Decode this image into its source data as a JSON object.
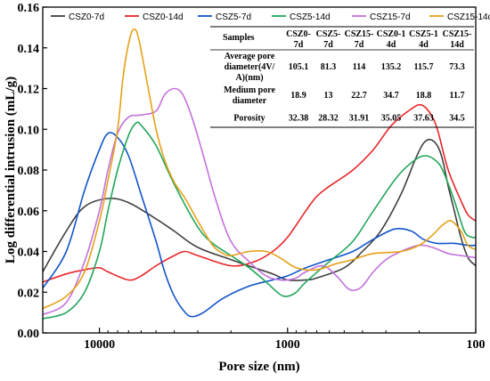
{
  "chart_data": {
    "type": "line",
    "xlabel": "Pore size (nm)",
    "ylabel": "Log differential intrusion (mL/g)",
    "x_scale": "log",
    "x_reversed": true,
    "xlim": [
      20000,
      100
    ],
    "ylim": [
      0,
      0.16
    ],
    "x_ticks": [
      10000,
      1000,
      100
    ],
    "x_tick_labels": [
      "10000",
      "1000",
      "100"
    ],
    "y_ticks": [
      0,
      0.02,
      0.04,
      0.06,
      0.08,
      0.1,
      0.12,
      0.14,
      0.16
    ],
    "y_tick_labels": [
      "0.00",
      "0.02",
      "0.04",
      "0.06",
      "0.08",
      "0.10",
      "0.12",
      "0.14",
      "0.16"
    ],
    "grid": false,
    "legend_position": "top",
    "series": [
      {
        "name": "CSZ0-7d",
        "color": "#404040",
        "points": [
          [
            20000,
            0.03
          ],
          [
            15000,
            0.05
          ],
          [
            12000,
            0.062
          ],
          [
            9000,
            0.066
          ],
          [
            7000,
            0.064
          ],
          [
            5000,
            0.056
          ],
          [
            4000,
            0.05
          ],
          [
            3000,
            0.042
          ],
          [
            2000,
            0.036
          ],
          [
            1500,
            0.032
          ],
          [
            1200,
            0.029
          ],
          [
            1000,
            0.026
          ],
          [
            800,
            0.026
          ],
          [
            700,
            0.027
          ],
          [
            500,
            0.032
          ],
          [
            400,
            0.04
          ],
          [
            320,
            0.05
          ],
          [
            250,
            0.068
          ],
          [
            210,
            0.085
          ],
          [
            190,
            0.093
          ],
          [
            175,
            0.095
          ],
          [
            160,
            0.092
          ],
          [
            150,
            0.085
          ],
          [
            140,
            0.072
          ],
          [
            130,
            0.06
          ],
          [
            120,
            0.047
          ],
          [
            110,
            0.037
          ],
          [
            100,
            0.033
          ]
        ]
      },
      {
        "name": "CSZ0-14d",
        "color": "#e8262a",
        "points": [
          [
            20000,
            0.025
          ],
          [
            15000,
            0.029
          ],
          [
            12000,
            0.031
          ],
          [
            10000,
            0.032
          ],
          [
            9000,
            0.03
          ],
          [
            7000,
            0.026
          ],
          [
            6000,
            0.028
          ],
          [
            5000,
            0.033
          ],
          [
            4000,
            0.038
          ],
          [
            3500,
            0.04
          ],
          [
            3000,
            0.038
          ],
          [
            2000,
            0.033
          ],
          [
            1500,
            0.035
          ],
          [
            1200,
            0.04
          ],
          [
            1000,
            0.047
          ],
          [
            800,
            0.06
          ],
          [
            700,
            0.067
          ],
          [
            600,
            0.072
          ],
          [
            450,
            0.08
          ],
          [
            350,
            0.09
          ],
          [
            280,
            0.102
          ],
          [
            220,
            0.11
          ],
          [
            195,
            0.112
          ],
          [
            175,
            0.108
          ],
          [
            160,
            0.1
          ],
          [
            140,
            0.08
          ],
          [
            120,
            0.065
          ],
          [
            110,
            0.058
          ],
          [
            100,
            0.055
          ]
        ]
      },
      {
        "name": "CSZ5-7d",
        "color": "#1155cc",
        "points": [
          [
            20000,
            0.022
          ],
          [
            15000,
            0.04
          ],
          [
            12000,
            0.07
          ],
          [
            10000,
            0.09
          ],
          [
            9000,
            0.098
          ],
          [
            8000,
            0.096
          ],
          [
            7000,
            0.087
          ],
          [
            6000,
            0.068
          ],
          [
            5000,
            0.045
          ],
          [
            4500,
            0.03
          ],
          [
            4000,
            0.018
          ],
          [
            3500,
            0.01
          ],
          [
            3200,
            0.008
          ],
          [
            2800,
            0.01
          ],
          [
            2200,
            0.017
          ],
          [
            1600,
            0.023
          ],
          [
            1200,
            0.026
          ],
          [
            1000,
            0.028
          ],
          [
            800,
            0.032
          ],
          [
            600,
            0.036
          ],
          [
            450,
            0.04
          ],
          [
            350,
            0.046
          ],
          [
            270,
            0.051
          ],
          [
            220,
            0.05
          ],
          [
            190,
            0.046
          ],
          [
            160,
            0.044
          ],
          [
            130,
            0.044
          ],
          [
            110,
            0.043
          ],
          [
            100,
            0.043
          ]
        ]
      },
      {
        "name": "CSZ5-14d",
        "color": "#22a65a",
        "points": [
          [
            20000,
            0.007
          ],
          [
            15000,
            0.01
          ],
          [
            12000,
            0.02
          ],
          [
            10000,
            0.04
          ],
          [
            9000,
            0.06
          ],
          [
            8000,
            0.08
          ],
          [
            7000,
            0.097
          ],
          [
            6400,
            0.103
          ],
          [
            6000,
            0.102
          ],
          [
            5000,
            0.092
          ],
          [
            4000,
            0.073
          ],
          [
            3000,
            0.052
          ],
          [
            2500,
            0.044
          ],
          [
            2000,
            0.038
          ],
          [
            1600,
            0.032
          ],
          [
            1300,
            0.025
          ],
          [
            1100,
            0.019
          ],
          [
            1000,
            0.018
          ],
          [
            900,
            0.02
          ],
          [
            800,
            0.025
          ],
          [
            600,
            0.035
          ],
          [
            450,
            0.045
          ],
          [
            350,
            0.06
          ],
          [
            260,
            0.077
          ],
          [
            210,
            0.085
          ],
          [
            185,
            0.087
          ],
          [
            165,
            0.085
          ],
          [
            150,
            0.08
          ],
          [
            130,
            0.065
          ],
          [
            115,
            0.05
          ],
          [
            105,
            0.047
          ],
          [
            100,
            0.047
          ]
        ]
      },
      {
        "name": "CSZ15-7d",
        "color": "#c372dc",
        "points": [
          [
            20000,
            0.009
          ],
          [
            15000,
            0.015
          ],
          [
            12000,
            0.035
          ],
          [
            10000,
            0.06
          ],
          [
            9000,
            0.08
          ],
          [
            8000,
            0.098
          ],
          [
            7000,
            0.106
          ],
          [
            6000,
            0.107
          ],
          [
            5000,
            0.109
          ],
          [
            4500,
            0.117
          ],
          [
            4000,
            0.12
          ],
          [
            3600,
            0.117
          ],
          [
            3200,
            0.105
          ],
          [
            2800,
            0.087
          ],
          [
            2400,
            0.065
          ],
          [
            2000,
            0.045
          ],
          [
            1600,
            0.035
          ],
          [
            1300,
            0.028
          ],
          [
            1100,
            0.026
          ],
          [
            1000,
            0.026
          ],
          [
            900,
            0.027
          ],
          [
            800,
            0.03
          ],
          [
            650,
            0.033
          ],
          [
            550,
            0.028
          ],
          [
            480,
            0.022
          ],
          [
            440,
            0.021
          ],
          [
            400,
            0.023
          ],
          [
            350,
            0.03
          ],
          [
            300,
            0.036
          ],
          [
            250,
            0.04
          ],
          [
            200,
            0.043
          ],
          [
            170,
            0.042
          ],
          [
            140,
            0.039
          ],
          [
            120,
            0.038
          ],
          [
            100,
            0.037
          ]
        ]
      },
      {
        "name": "CSZ15-14d",
        "color": "#e6a118",
        "points": [
          [
            20000,
            0.012
          ],
          [
            15000,
            0.018
          ],
          [
            12000,
            0.03
          ],
          [
            10000,
            0.055
          ],
          [
            9000,
            0.075
          ],
          [
            8000,
            0.1
          ],
          [
            7500,
            0.125
          ],
          [
            7000,
            0.142
          ],
          [
            6600,
            0.149
          ],
          [
            6200,
            0.145
          ],
          [
            5500,
            0.12
          ],
          [
            5000,
            0.1
          ],
          [
            4500,
            0.085
          ],
          [
            4000,
            0.074
          ],
          [
            3500,
            0.066
          ],
          [
            3000,
            0.055
          ],
          [
            2500,
            0.043
          ],
          [
            2200,
            0.039
          ],
          [
            2000,
            0.038
          ],
          [
            1600,
            0.04
          ],
          [
            1300,
            0.04
          ],
          [
            1100,
            0.037
          ],
          [
            900,
            0.032
          ],
          [
            700,
            0.031
          ],
          [
            550,
            0.034
          ],
          [
            450,
            0.036
          ],
          [
            350,
            0.039
          ],
          [
            250,
            0.04
          ],
          [
            200,
            0.043
          ],
          [
            170,
            0.048
          ],
          [
            150,
            0.053
          ],
          [
            135,
            0.055
          ],
          [
            120,
            0.05
          ],
          [
            110,
            0.043
          ],
          [
            100,
            0.041
          ]
        ]
      }
    ],
    "table": {
      "headers": [
        [
          "Samples"
        ],
        [
          "CSZ0-",
          "7d"
        ],
        [
          "CSZ5-",
          "7d"
        ],
        [
          "CSZ15-",
          "7d"
        ],
        [
          "CSZ0-1",
          "4d"
        ],
        [
          "CSZ5-1",
          "4d"
        ],
        [
          "CSZ15-",
          "14d"
        ]
      ],
      "rows": [
        {
          "label": [
            "Average pore",
            "diameter(4V/",
            "A)(nm)"
          ],
          "values": [
            "105.1",
            "81.3",
            "114",
            "135.2",
            "115.7",
            "73.3"
          ]
        },
        {
          "label": [
            "Medium pore",
            "diameter"
          ],
          "values": [
            "18.9",
            "13",
            "22.7",
            "34.7",
            "18.8",
            "11.7"
          ]
        },
        {
          "label": [
            "Porosity"
          ],
          "values": [
            "32.38",
            "28.32",
            "31.91",
            "35.05",
            "37.63",
            "34.5"
          ]
        }
      ]
    }
  }
}
